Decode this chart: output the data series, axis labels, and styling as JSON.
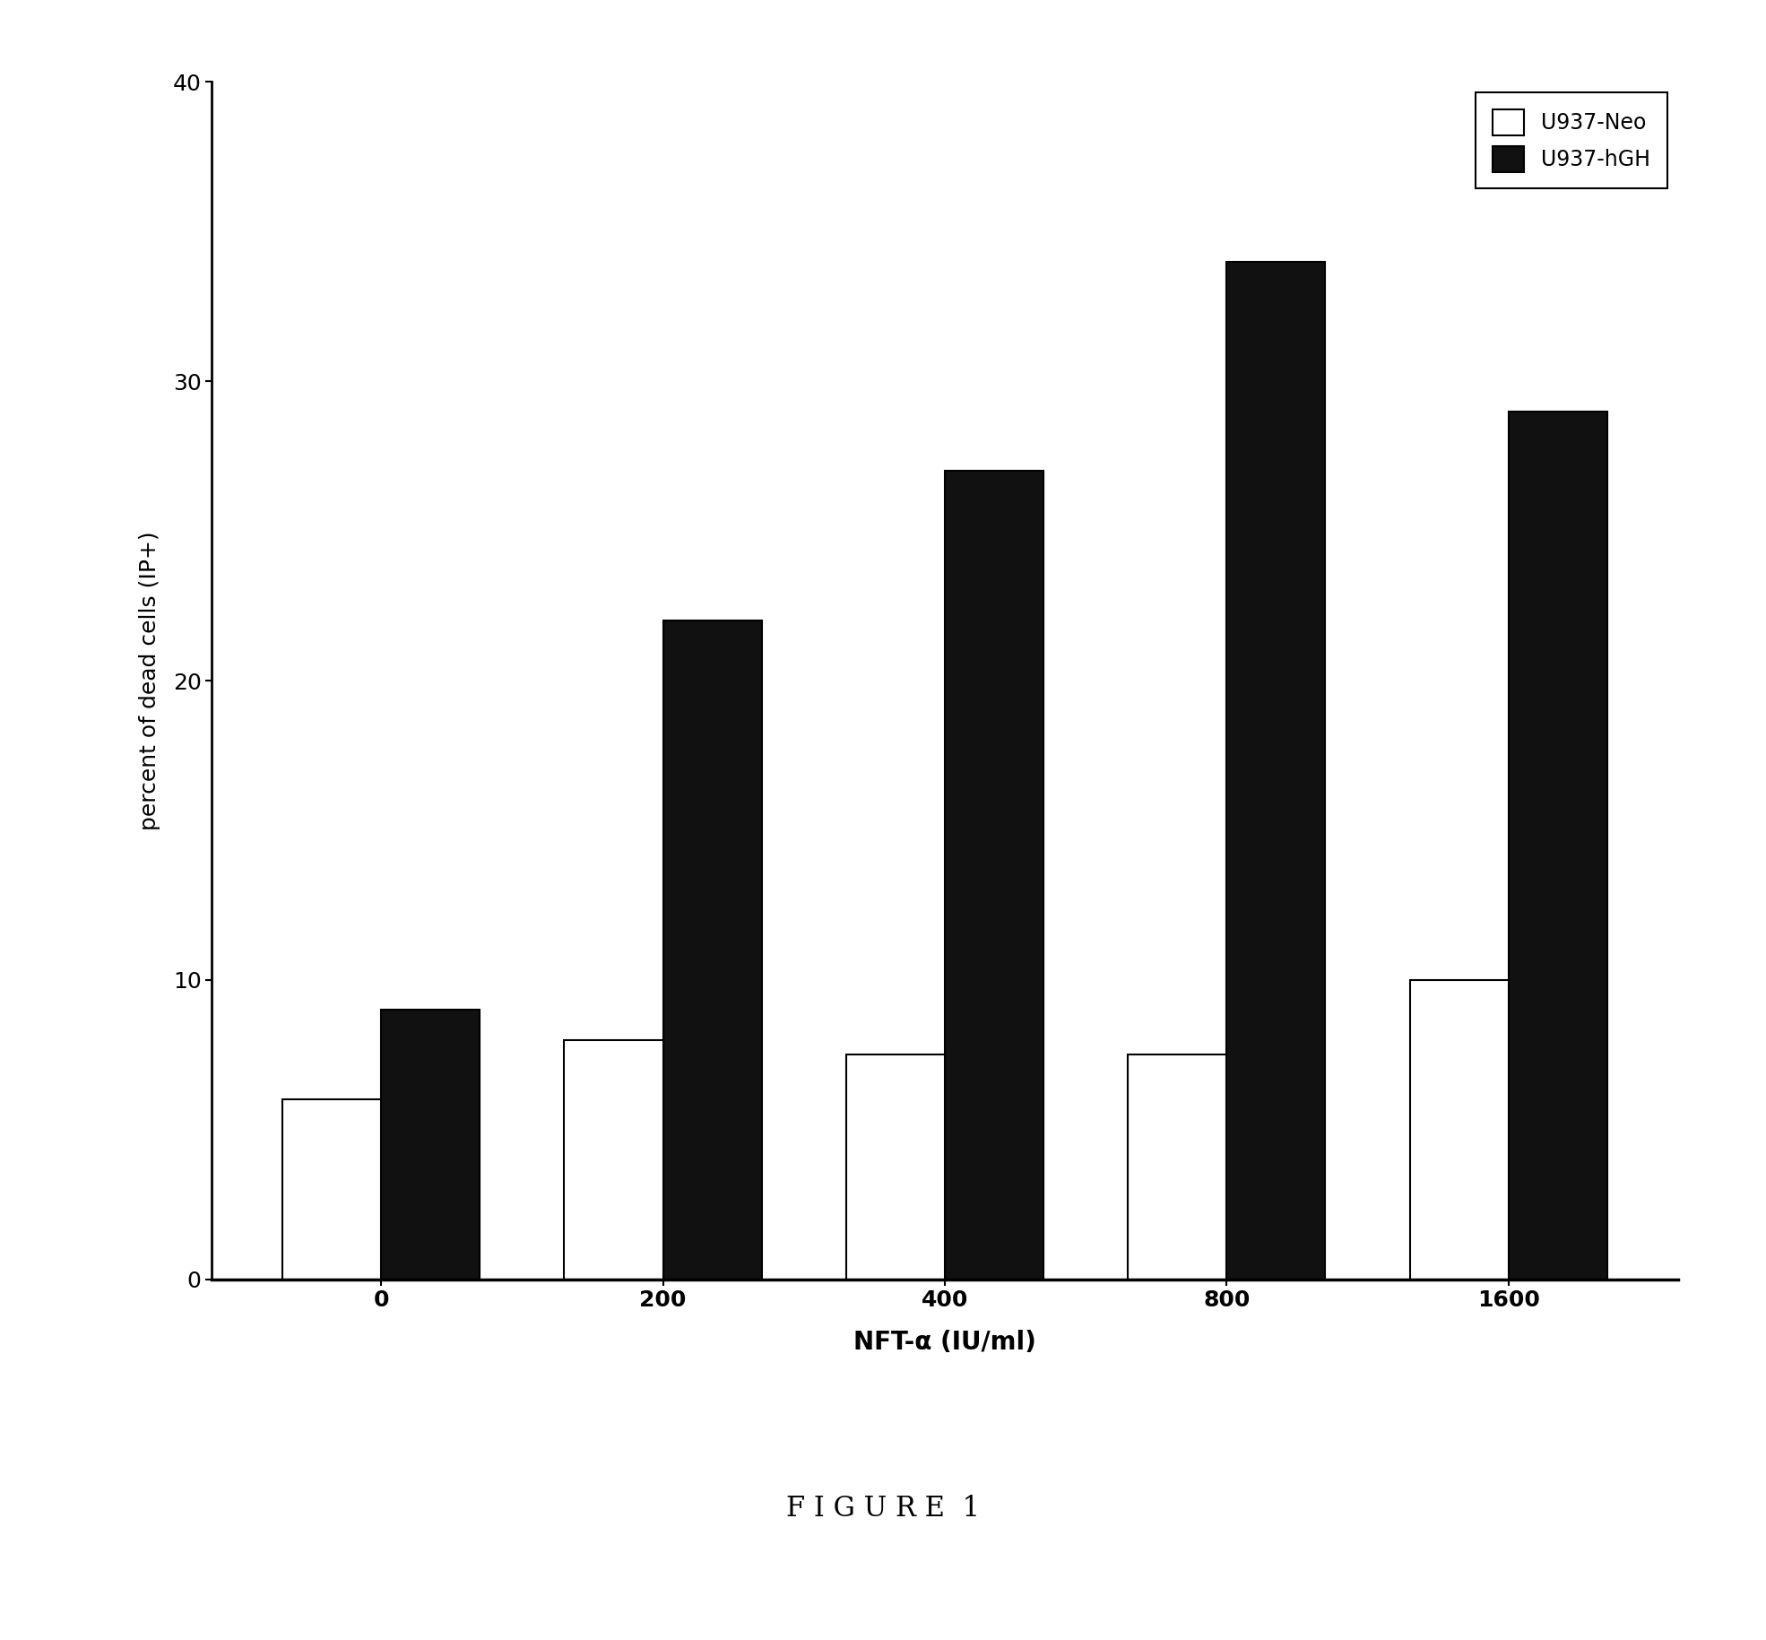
{
  "categories": [
    "0",
    "200",
    "400",
    "800",
    "1600"
  ],
  "neo_values": [
    6.0,
    8.0,
    7.5,
    7.5,
    10.0
  ],
  "hgh_values": [
    9.0,
    22.0,
    27.0,
    34.0,
    29.0
  ],
  "neo_color": "#ffffff",
  "hgh_color": "#111111",
  "neo_label": "U937-Neo",
  "hgh_label": "U937-hGH",
  "ylabel": "percent of dead cells (IP+)",
  "xlabel": "NFT-α (IU/ml)",
  "ylim": [
    0,
    40
  ],
  "yticks": [
    0,
    10,
    20,
    30,
    40
  ],
  "figure_label": "F I G U R E  1",
  "bar_width": 0.35,
  "edge_color": "#000000",
  "background_color": "#ffffff",
  "axis_fontsize": 18,
  "tick_fontsize": 18,
  "legend_fontsize": 17,
  "figure_label_fontsize": 22
}
